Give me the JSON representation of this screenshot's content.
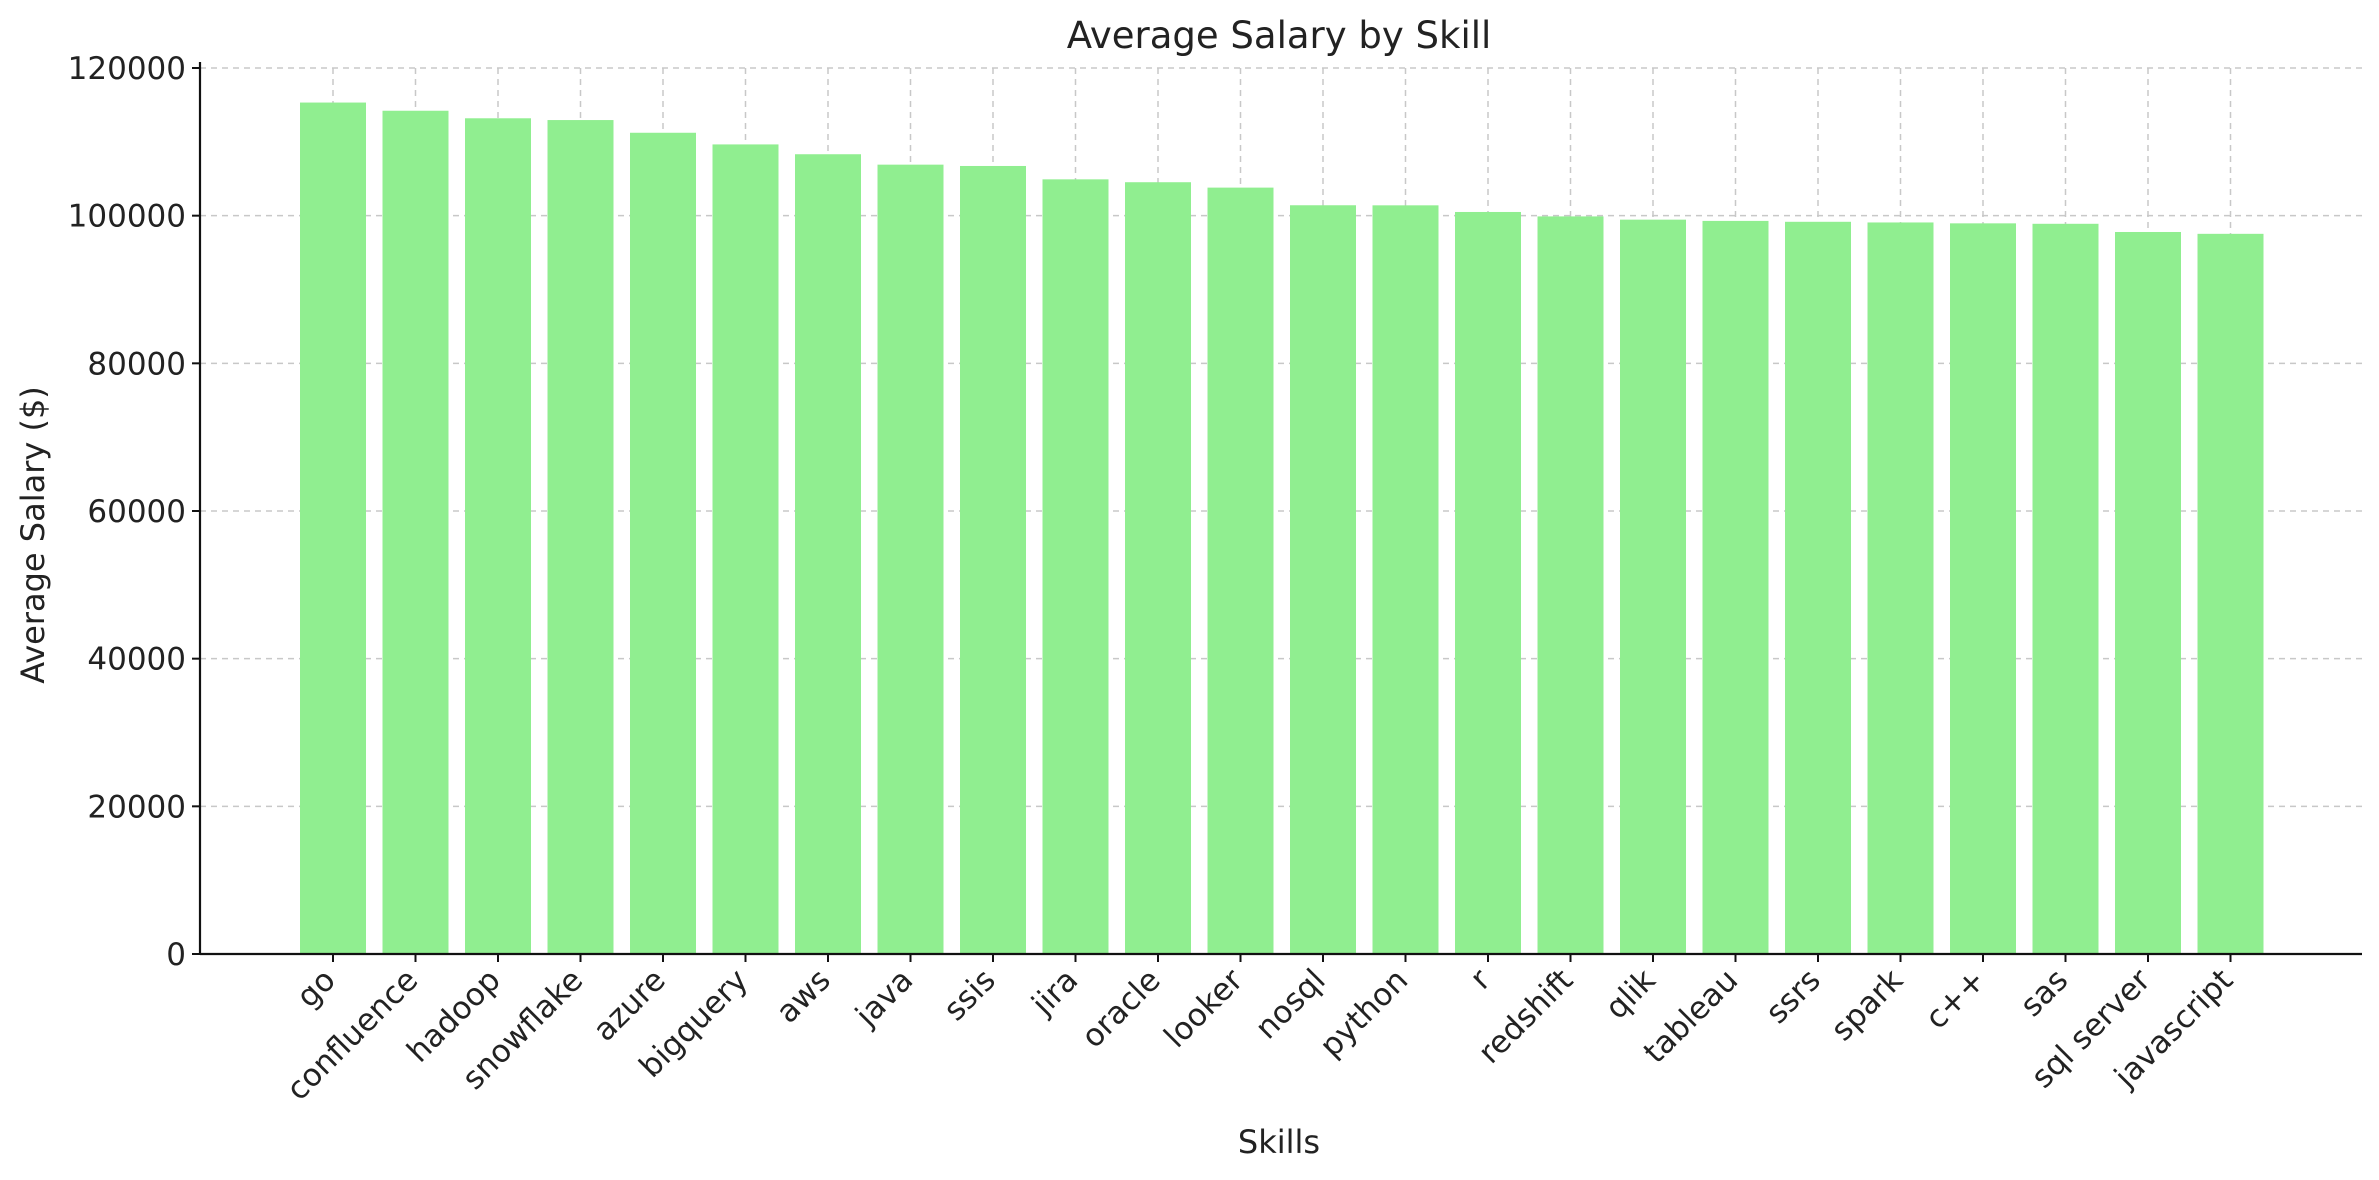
{
  "chart_data": {
    "type": "bar",
    "title": "Average Salary by Skill",
    "xlabel": "Skills",
    "ylabel": "Average Salary ($)",
    "categories": [
      "go",
      "confluence",
      "hadoop",
      "snowflake",
      "azure",
      "bigquery",
      "aws",
      "java",
      "ssis",
      "jira",
      "oracle",
      "looker",
      "nosql",
      "python",
      "r",
      "redshift",
      "qlik",
      "tableau",
      "ssrs",
      "spark",
      "c++",
      "sas",
      "sql server",
      "javascript"
    ],
    "values": [
      115320,
      114210,
      113190,
      112950,
      111230,
      109650,
      108320,
      106910,
      106730,
      104920,
      104530,
      103800,
      101410,
      101400,
      100500,
      99900,
      99460,
      99290,
      99170,
      99080,
      98960,
      98900,
      97790,
      97540
    ],
    "ylim": [
      0,
      120000
    ],
    "yticks": [
      0,
      20000,
      40000,
      60000,
      80000,
      100000,
      120000
    ],
    "grid": true,
    "bar_color": "#90ee90",
    "axis_color": "#111111",
    "grid_color": "#c8c8c8"
  }
}
